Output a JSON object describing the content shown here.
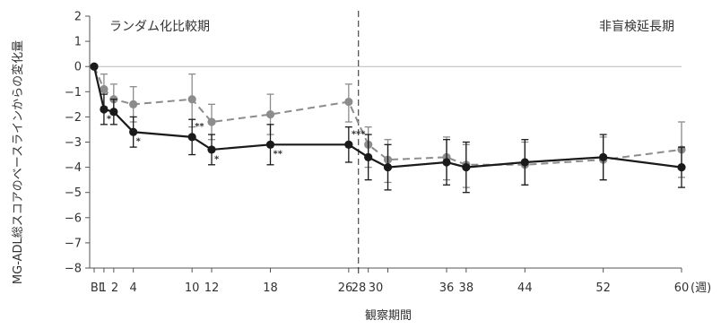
{
  "chart_data": {
    "type": "line",
    "ylabel": "MG-ADL総スコアのベースラインからの変化量",
    "xlabel": "観察期間",
    "x_unit": "(週)",
    "ylim": [
      -8,
      2
    ],
    "yticks": [
      2,
      1,
      0,
      -1,
      -2,
      -3,
      -4,
      -5,
      -6,
      -7,
      -8
    ],
    "ytick_labels": [
      "2",
      "1",
      "0",
      "−1",
      "−2",
      "−3",
      "−4",
      "−5",
      "−6",
      "−7",
      "−8"
    ],
    "xticks": [
      0,
      1,
      2,
      4,
      10,
      12,
      18,
      26,
      28,
      30,
      36,
      38,
      44,
      52,
      60
    ],
    "xtick_labels": [
      "BL",
      "1",
      "2",
      "4",
      "10",
      "12",
      "18",
      "26",
      "28",
      "30",
      "36",
      "38",
      "44",
      "52",
      "60"
    ],
    "period_divider_x": 27,
    "periods": [
      "ランダム化比較期",
      "非盲検延長期"
    ],
    "zero_line": true,
    "grid": false,
    "series": [
      {
        "style": "dashed",
        "color": "#8c8c8c",
        "x": [
          0,
          1,
          2,
          4,
          10,
          12,
          18,
          26,
          28,
          30,
          36,
          38,
          44,
          52,
          60
        ],
        "y": [
          0,
          -0.9,
          -1.3,
          -1.5,
          -1.3,
          -2.2,
          -1.9,
          -1.4,
          -3.1,
          -3.7,
          -3.6,
          -3.9,
          -3.9,
          -3.7,
          -3.3
        ],
        "err_low": [
          0,
          -1.6,
          -1.9,
          -2.2,
          -2.4,
          -2.9,
          -2.7,
          -2.2,
          -4.0,
          -4.6,
          -4.5,
          -4.8,
          -4.7,
          -4.5,
          -4.4
        ],
        "err_high": [
          0,
          -0.3,
          -0.7,
          -0.8,
          -0.3,
          -1.5,
          -1.1,
          -0.7,
          -2.4,
          -2.9,
          -2.8,
          -3.1,
          -3.0,
          -2.8,
          -2.2
        ]
      },
      {
        "style": "solid",
        "color": "#1a1a1a",
        "x": [
          0,
          1,
          2,
          4,
          10,
          12,
          18,
          26,
          28,
          30,
          36,
          38,
          44,
          52,
          60
        ],
        "y": [
          0,
          -1.7,
          -1.8,
          -2.6,
          -2.8,
          -3.3,
          -3.1,
          -3.1,
          -3.6,
          -4.0,
          -3.8,
          -4.0,
          -3.8,
          -3.6,
          -4.0
        ],
        "err_low": [
          0,
          -2.3,
          -2.3,
          -3.2,
          -3.5,
          -3.9,
          -3.9,
          -3.8,
          -4.5,
          -4.9,
          -4.7,
          -5.0,
          -4.7,
          -4.5,
          -4.8
        ],
        "err_high": [
          0,
          -1.1,
          -1.3,
          -2.0,
          -2.1,
          -2.7,
          -2.3,
          -2.4,
          -2.7,
          -3.1,
          -2.9,
          -3.0,
          -2.9,
          -2.7,
          -3.2
        ]
      }
    ],
    "significance": [
      {
        "x": 1,
        "y": -2.0,
        "label": "*"
      },
      {
        "x": 4,
        "y": -2.9,
        "label": "*"
      },
      {
        "x": 10,
        "y": -2.3,
        "label": "**"
      },
      {
        "x": 12,
        "y": -3.6,
        "label": "*"
      },
      {
        "x": 18,
        "y": -3.4,
        "label": "**"
      },
      {
        "x": 26,
        "y": -2.6,
        "label": "***"
      }
    ]
  }
}
